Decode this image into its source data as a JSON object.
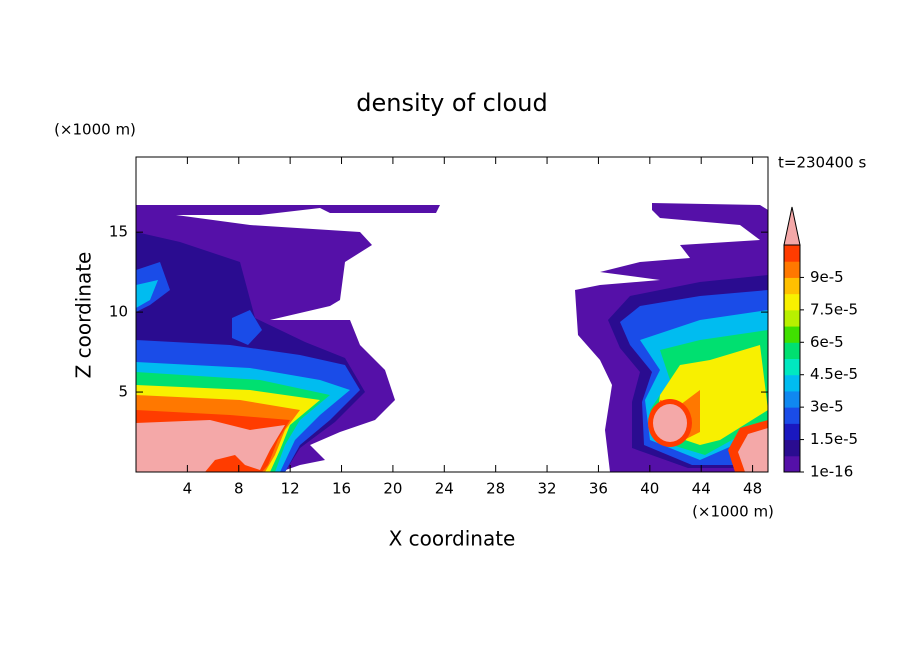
{
  "chart_data": {
    "type": "contour",
    "title": "density of cloud",
    "x_label": "X coordinate",
    "y_label": "Z coordinate",
    "x_unit": "(×1000 m)",
    "y_unit": "(×1000 m)",
    "time_label": "t=230400 s",
    "xlim": [
      0,
      49.2
    ],
    "xticks": [
      4,
      8,
      12,
      16,
      20,
      24,
      28,
      32,
      36,
      40,
      44,
      48
    ],
    "ylim": [
      0,
      19.7
    ],
    "yticks": [
      5,
      10,
      15
    ],
    "colorbar": {
      "lim": [
        0,
        0.000105
      ],
      "colors": [
        "#5510a8",
        "#2a0c90",
        "#1a18c0",
        "#1a4ce8",
        "#1088f0",
        "#00bcf0",
        "#00e8c0",
        "#00e070",
        "#40e000",
        "#b8f000",
        "#f8f000",
        "#ffc000",
        "#ff7800",
        "#ff3c00"
      ],
      "over_color": "#f4a8a8",
      "ticks": [
        {
          "value": 1e-16,
          "label": "1e-16"
        },
        {
          "value": 1.5e-05,
          "label": "1.5e-5"
        },
        {
          "value": 3e-05,
          "label": "3e-5"
        },
        {
          "value": 4.5e-05,
          "label": "4.5e-5"
        },
        {
          "value": 6e-05,
          "label": "6e-5"
        },
        {
          "value": 7.5e-05,
          "label": "7.5e-5"
        },
        {
          "value": 9e-05,
          "label": "9e-5"
        }
      ]
    }
  }
}
